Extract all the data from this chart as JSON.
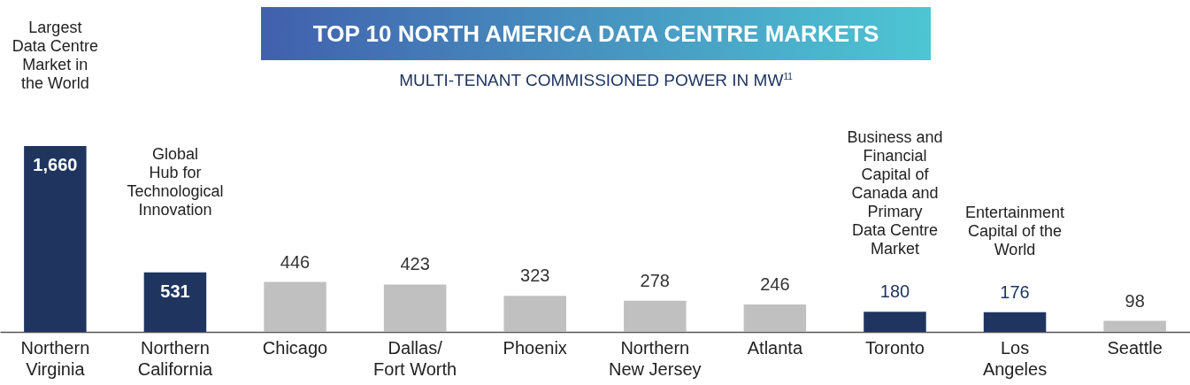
{
  "chart_data": {
    "type": "bar",
    "title": "TOP 10 NORTH AMERICA DATA CENTRE MARKETS",
    "subtitle": "MULTI-TENANT COMMISSIONED POWER IN MW$^{11}$",
    "categories": [
      "Northern\nVirginia",
      "Northern\nCalifornia",
      "Chicago",
      "Dallas/\nFort Worth",
      "Phoenix",
      "Northern\nNew Jersey",
      "Atlanta",
      "Toronto",
      "Los\nAngeles",
      "Seattle"
    ],
    "values": [
      1660,
      531,
      446,
      423,
      323,
      278,
      246,
      180,
      176,
      98
    ],
    "colors": [
      "#1f3560",
      "#1f3560",
      "#c0c0c0",
      "#c0c0c0",
      "#c0c0c0",
      "#c0c0c0",
      "#c0c0c0",
      "#1f3560",
      "#1f3560",
      "#c0c0c0"
    ],
    "value_labels": [
      "1,660",
      "531",
      "446",
      "423",
      "323",
      "278",
      "246",
      "180",
      "176",
      "98"
    ],
    "grid": false,
    "annotations": [
      "Largest\nData Centre\nMarket in\nthe World",
      "Global\nHub for\nTechnological\nInnovation",
      "Business and\nFinancial\nCapital of\nCanada and\nPrimary\nData Centre\nMarket",
      "Entertainment\nCapital of the\nWorld"
    ]
  }
}
